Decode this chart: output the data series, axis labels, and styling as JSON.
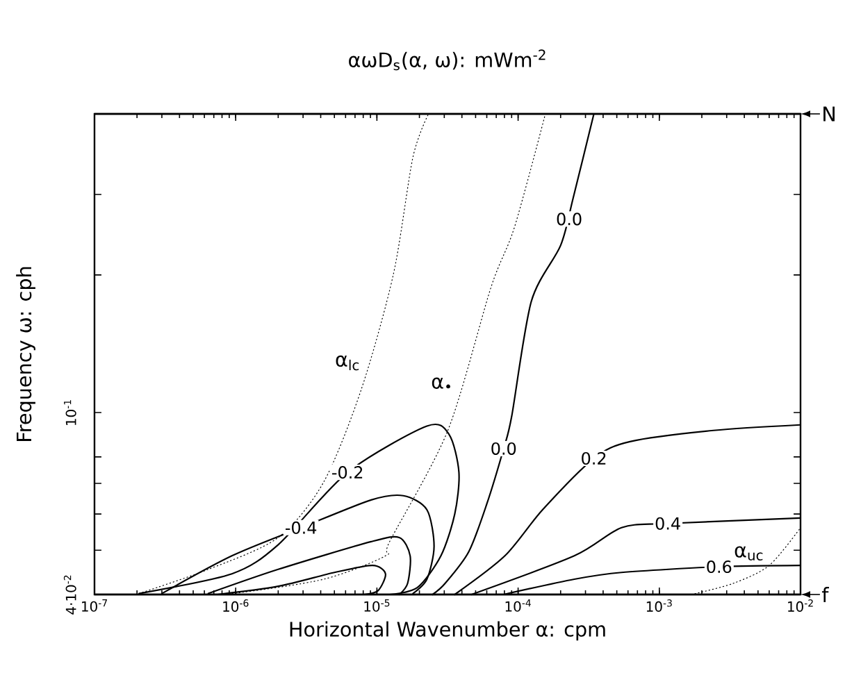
{
  "chart_data": {
    "type": "line",
    "title": "αωD$_{s}$(α, ω): mWm$^{-2}$",
    "xlabel": "Horizontal Wavenumber α: cpm",
    "ylabel": "Frequency ω: cph",
    "log": "xy",
    "xlim": [
      1e-07,
      0.01
    ],
    "ylim": [
      0.04,
      0.45
    ],
    "xticks": [
      {
        "value": 1e-07,
        "label": "10$^{-7}$"
      },
      {
        "value": 1e-06,
        "label": "10$^{-6}$"
      },
      {
        "value": 1e-05,
        "label": "10$^{-5}$"
      },
      {
        "value": 0.0001,
        "label": "10$^{-4}$"
      },
      {
        "value": 0.001,
        "label": "10$^{-3}$"
      },
      {
        "value": 0.01,
        "label": "10$^{-2}$"
      }
    ],
    "yticks": [
      {
        "value": 0.04,
        "label": "4·10$^{-2}$"
      },
      {
        "value": 0.05,
        "label": null
      },
      {
        "value": 0.06,
        "label": null
      },
      {
        "value": 0.07,
        "label": null
      },
      {
        "value": 0.08,
        "label": null
      },
      {
        "value": 0.1,
        "label": "10$^{-1}$"
      },
      {
        "value": 0.2,
        "label": null
      },
      {
        "value": 0.3,
        "label": null
      }
    ],
    "series": [
      {
        "color": "#000000",
        "x": [
          2.07e-07,
          9.4e-07,
          2e-06,
          6.2e-06,
          2.26e-05,
          3.25e-05,
          3.81e-05,
          3.56e-05,
          2.84e-05,
          1.93e-05,
          1.23e-05
        ],
        "values": [
          0.0402,
          0.0444,
          0.0514,
          0.074,
          0.0934,
          0.0895,
          0.074,
          0.06,
          0.0486,
          0.0414,
          0.04
        ]
      },
      {
        "color": "#000000",
        "x": [
          3e-07,
          9.4e-07,
          2.9e-06,
          9.1e-06,
          1.54e-05,
          2.26e-05,
          2.54e-05,
          2.26e-05,
          1.8e-05
        ],
        "values": [
          0.0402,
          0.0486,
          0.056,
          0.0644,
          0.0658,
          0.0613,
          0.051,
          0.0432,
          0.0402
        ]
      },
      {
        "color": "#000000",
        "x": [
          6.4e-07,
          2e-06,
          9.1e-06,
          1.44e-05,
          1.72e-05,
          1.65e-05,
          1.44e-05
        ],
        "values": [
          0.0402,
          0.0454,
          0.0522,
          0.0533,
          0.0486,
          0.0423,
          0.04
        ]
      },
      {
        "color": "#000000",
        "x": [
          7.4e-07,
          2e-06,
          5e-06,
          9.3e-06,
          1.15e-05,
          1.02e-05,
          8.1e-06
        ],
        "values": [
          0.04,
          0.0417,
          0.0447,
          0.0463,
          0.0444,
          0.0408,
          0.04
        ]
      },
      {
        "color": "#000000",
        "x": [
          2.48e-05,
          3.04e-05,
          4.47e-05,
          6e-05,
          7.9e-05,
          9e-05,
          0.000124,
          0.0002,
          0.000245,
          0.000344
        ],
        "values": [
          0.04,
          0.0423,
          0.0496,
          0.0631,
          0.0834,
          0.098,
          0.175,
          0.232,
          0.294,
          0.45
        ]
      },
      {
        "color": "#000000",
        "x": [
          3.56e-05,
          8.06e-05,
          0.000149,
          0.000344,
          0.00062,
          0.00242,
          0.01
        ],
        "values": [
          0.04,
          0.0486,
          0.0613,
          0.0794,
          0.0864,
          0.0914,
          0.094
        ]
      },
      {
        "color": "#000000",
        "x": [
          4.68e-05,
          0.00025,
          0.00054,
          0.00115,
          0.01
        ],
        "values": [
          0.04,
          0.0486,
          0.056,
          0.0572,
          0.0588
        ]
      },
      {
        "color": "#000000",
        "x": [
          7.9e-05,
          0.00025,
          0.00054,
          0.00265,
          0.01
        ],
        "values": [
          0.04,
          0.0432,
          0.0447,
          0.046,
          0.0463
        ]
      },
      {
        "name": "α$_{lc}$",
        "color": "#000000",
        "line_style": "dotted",
        "x": [
          2.07e-07,
          6.4e-07,
          2e-06,
          4.2e-06,
          7.8e-06,
          1.31e-05,
          1.8e-05,
          2.32e-05
        ],
        "values": [
          0.0402,
          0.0454,
          0.0533,
          0.0705,
          0.113,
          0.201,
          0.362,
          0.45
        ]
      },
      {
        "name": "α$_{•}$",
        "color": "#000000",
        "line_style": "dotted",
        "x": [
          4.4e-07,
          9.4e-07,
          4.2e-06,
          1.15e-05,
          1.23e-05,
          3.18e-05,
          6.43e-05,
          9.45e-05,
          0.000156
        ],
        "values": [
          0.04,
          0.0402,
          0.0432,
          0.0486,
          0.0522,
          0.0914,
          0.188,
          0.255,
          0.45
        ]
      },
      {
        "name": "α$_{uc}$",
        "color": "#000000",
        "line_style": "dotted",
        "x": [
          0.00169,
          0.00333,
          0.006,
          0.01
        ],
        "values": [
          0.04,
          0.0423,
          0.0463,
          0.056
        ]
      }
    ],
    "annotations": [
      {
        "text": "-0.2",
        "x": 6.2e-06,
        "y": 0.074
      },
      {
        "text": "-0.4",
        "x": 2.9e-06,
        "y": 0.056
      },
      {
        "text": "0.0",
        "x": 7.9e-05,
        "y": 0.0834
      },
      {
        "text": "0.0",
        "x": 0.00023,
        "y": 0.265
      },
      {
        "text": "0.2",
        "x": 0.000344,
        "y": 0.0794
      },
      {
        "text": "0.4",
        "x": 0.00115,
        "y": 0.0572
      },
      {
        "text": "0.6",
        "x": 0.00265,
        "y": 0.046
      }
    ],
    "ref_lines": [
      {
        "axis": "y",
        "value": 0.45,
        "label": "N"
      },
      {
        "axis": "y",
        "value": 0.04,
        "label": "f"
      }
    ]
  }
}
